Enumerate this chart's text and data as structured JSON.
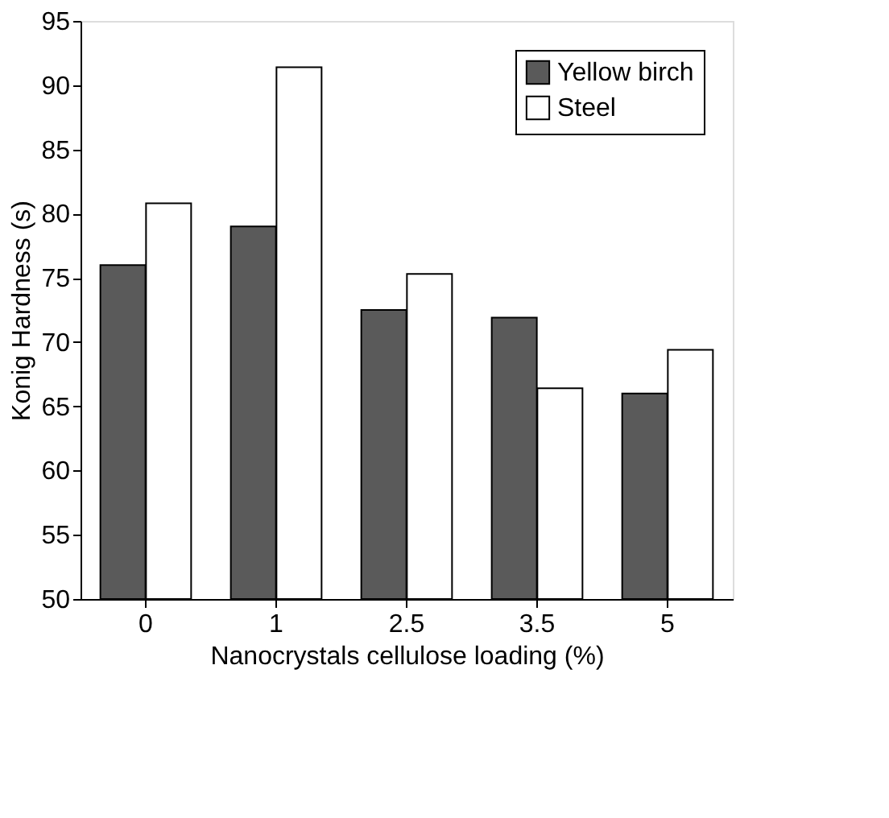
{
  "chart_data": {
    "type": "bar",
    "xlabel": "Nanocrystals cellulose loading (%)",
    "ylabel": "Konig Hardness (s)",
    "categories": [
      "0",
      "1",
      "2.5",
      "3.5",
      "5"
    ],
    "series": [
      {
        "name": "Yellow birch",
        "color": "#5a5a5a",
        "values": [
          76,
          79,
          72.5,
          71.9,
          66
        ]
      },
      {
        "name": "Steel",
        "color": "#ffffff",
        "values": [
          80.8,
          91.4,
          75.3,
          66.4,
          69.4
        ]
      }
    ],
    "ylim": [
      50,
      95
    ],
    "yticks": [
      50,
      55,
      60,
      65,
      70,
      75,
      80,
      85,
      90,
      95
    ],
    "grid": false,
    "legend": "top right"
  }
}
